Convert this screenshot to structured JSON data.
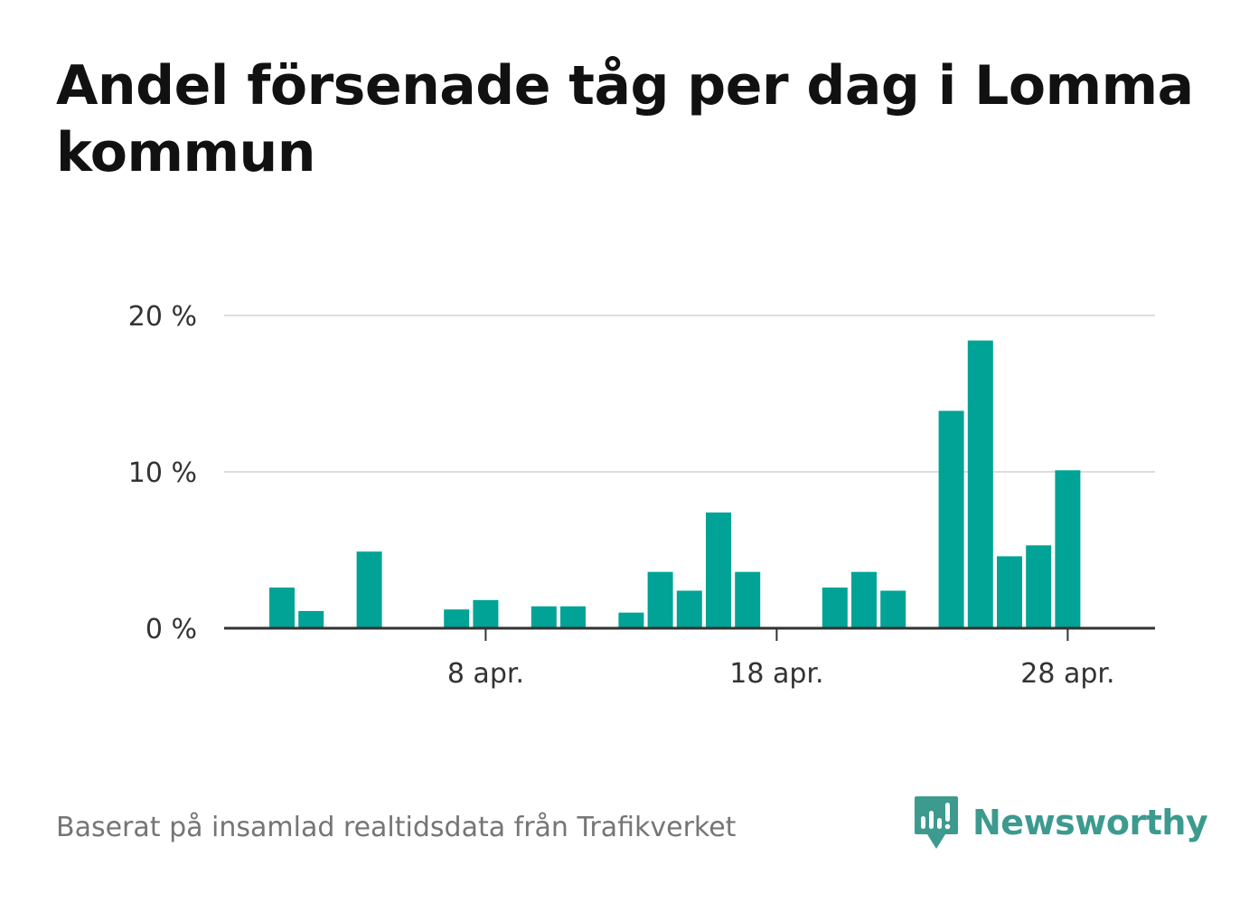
{
  "title": "Andel försenade tåg per dag i Lomma kommun",
  "source_note": "Baserat på insamlad realtidsdata från Trafikverket",
  "brand": {
    "name": "Newsworthy",
    "icon": "newsworthy-logo-icon",
    "color": "#3c9a8e"
  },
  "chart_data": {
    "type": "bar",
    "title": "Andel försenade tåg per dag i Lomma kommun",
    "xlabel": "",
    "ylabel": "",
    "x_unit": "day of April",
    "x_range": [
      1,
      30
    ],
    "ylim": [
      0,
      20
    ],
    "y_ticks": [
      0,
      10,
      20
    ],
    "y_tick_labels": [
      "0 %",
      "10 %",
      "20 %"
    ],
    "x_ticks": [
      8,
      18,
      28
    ],
    "x_tick_labels": [
      "8 apr.",
      "18 apr.",
      "28 apr."
    ],
    "grid": true,
    "legend": "none",
    "bar_color": "#00a396",
    "days": [
      1,
      2,
      3,
      4,
      5,
      6,
      7,
      8,
      9,
      10,
      11,
      12,
      13,
      14,
      15,
      16,
      17,
      18,
      19,
      20,
      21,
      22,
      23,
      24,
      25,
      26,
      27,
      28,
      29
    ],
    "values": [
      2.6,
      1.1,
      0,
      4.9,
      0,
      0,
      1.2,
      1.8,
      0,
      1.4,
      1.4,
      0,
      1.0,
      3.6,
      2.4,
      7.4,
      3.6,
      0,
      0,
      2.6,
      3.6,
      2.4,
      0,
      13.9,
      18.4,
      4.6,
      5.3,
      10.1,
      0
    ]
  }
}
